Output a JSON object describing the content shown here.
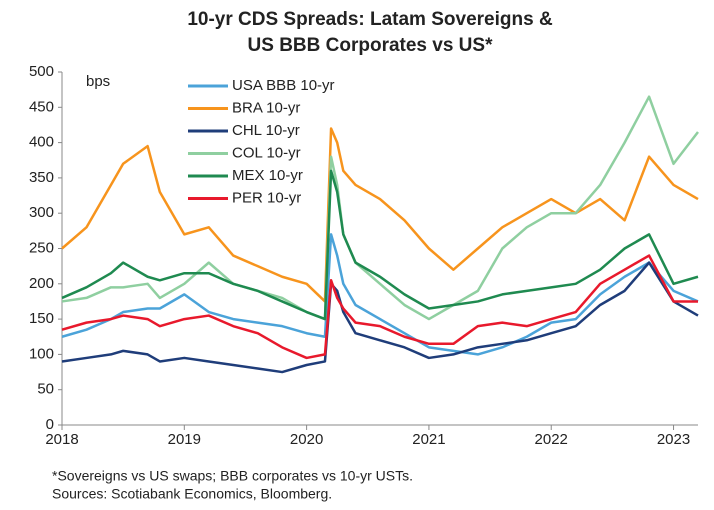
{
  "chart_data": {
    "type": "line",
    "title": [
      "10-yr CDS Spreads: Latam Sovereigns &",
      "US BBB Corporates vs US*"
    ],
    "y_label": "bps",
    "footnotes": [
      "*Sovereigns vs US swaps; BBB corporates vs 10-yr USTs.",
      "Sources: Scotiabank Economics, Bloomberg."
    ],
    "x": [
      2018.0,
      2018.2,
      2018.4,
      2018.5,
      2018.7,
      2018.8,
      2019.0,
      2019.2,
      2019.4,
      2019.6,
      2019.8,
      2020.0,
      2020.15,
      2020.2,
      2020.25,
      2020.3,
      2020.4,
      2020.6,
      2020.8,
      2021.0,
      2021.2,
      2021.4,
      2021.6,
      2021.8,
      2022.0,
      2022.2,
      2022.4,
      2022.6,
      2022.8,
      2023.0,
      2023.2
    ],
    "series": [
      {
        "name": "USA BBB 10-yr",
        "color": "#4ba3d9",
        "values": [
          125,
          135,
          150,
          160,
          165,
          165,
          185,
          160,
          150,
          145,
          140,
          130,
          125,
          270,
          240,
          200,
          170,
          150,
          130,
          110,
          105,
          100,
          110,
          125,
          145,
          150,
          185,
          210,
          230,
          190,
          175
        ]
      },
      {
        "name": "BRA 10-yr",
        "color": "#f7941d",
        "values": [
          250,
          280,
          340,
          370,
          395,
          330,
          270,
          280,
          240,
          225,
          210,
          200,
          175,
          420,
          400,
          360,
          340,
          320,
          290,
          250,
          220,
          250,
          280,
          300,
          320,
          300,
          320,
          290,
          380,
          340,
          320
        ]
      },
      {
        "name": "CHL 10-yr",
        "color": "#1f3d7a",
        "values": [
          90,
          95,
          100,
          105,
          100,
          90,
          95,
          90,
          85,
          80,
          75,
          85,
          90,
          200,
          190,
          160,
          130,
          120,
          110,
          95,
          100,
          110,
          115,
          120,
          130,
          140,
          170,
          190,
          230,
          175,
          155
        ]
      },
      {
        "name": "COL 10-yr",
        "color": "#8fcfa0",
        "values": [
          175,
          180,
          195,
          195,
          200,
          180,
          200,
          230,
          200,
          190,
          180,
          160,
          150,
          380,
          340,
          270,
          230,
          200,
          170,
          150,
          170,
          190,
          250,
          280,
          300,
          300,
          340,
          400,
          465,
          370,
          415
        ]
      },
      {
        "name": "MEX 10-yr",
        "color": "#1f8a50",
        "values": [
          180,
          195,
          215,
          230,
          210,
          205,
          215,
          215,
          200,
          190,
          175,
          160,
          150,
          360,
          330,
          270,
          230,
          210,
          185,
          165,
          170,
          175,
          185,
          190,
          195,
          200,
          220,
          250,
          270,
          200,
          210
        ]
      },
      {
        "name": "PER 10-yr",
        "color": "#e8192c",
        "values": [
          135,
          145,
          150,
          155,
          150,
          140,
          150,
          155,
          140,
          130,
          110,
          95,
          100,
          205,
          180,
          165,
          145,
          140,
          125,
          115,
          115,
          140,
          145,
          140,
          150,
          160,
          200,
          220,
          240,
          175,
          175
        ]
      }
    ],
    "xlim": [
      2018,
      2023.2
    ],
    "xticks": [
      2018,
      2019,
      2020,
      2021,
      2022,
      2023
    ],
    "ylim": [
      0,
      500
    ],
    "yticks": [
      0,
      50,
      100,
      150,
      200,
      250,
      300,
      350,
      400,
      450,
      500
    ],
    "grid": false,
    "legend": "upper left"
  }
}
